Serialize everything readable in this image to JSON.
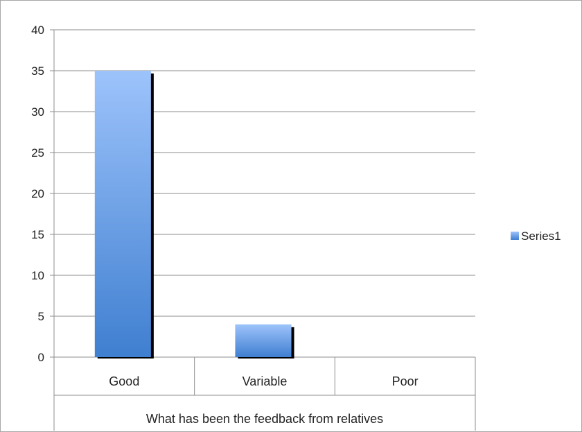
{
  "chart_data": {
    "type": "bar",
    "categories": [
      "Good",
      "Variable",
      "Poor"
    ],
    "series": [
      {
        "name": "Series1",
        "values": [
          35,
          4,
          0
        ]
      }
    ],
    "xlabel": "What has been the feedback from relatives",
    "ylabel": "",
    "ylim": [
      0,
      40
    ],
    "yticks": [
      0,
      5,
      10,
      15,
      20,
      25,
      30,
      35,
      40
    ],
    "grid": true,
    "legend": "right",
    "colors": {
      "bar_top": "#9dc3fb",
      "bar_bottom": "#3f7fd0",
      "shadow": "#000000",
      "grid": "#8c8c8c"
    }
  }
}
